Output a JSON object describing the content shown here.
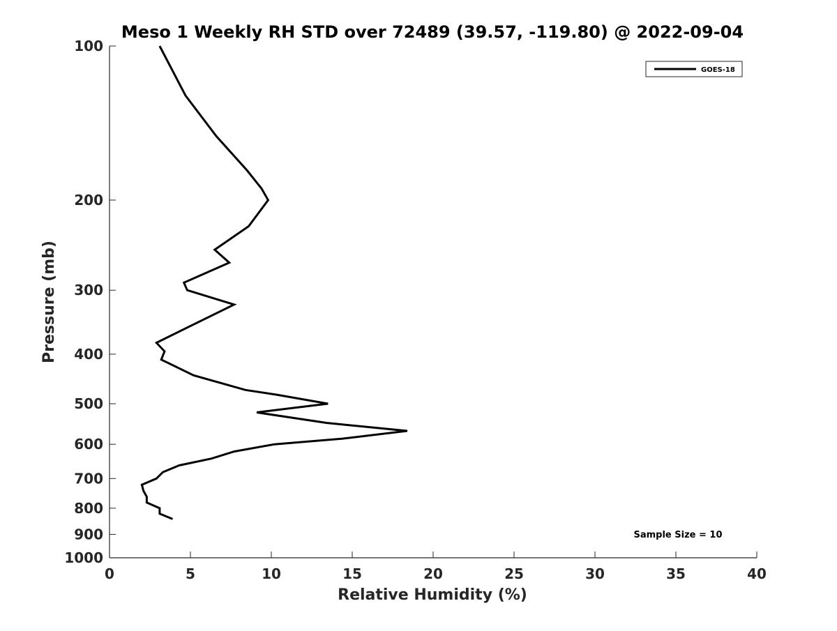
{
  "chart_data": {
    "type": "line",
    "title": "Meso 1 Weekly RH STD over 72489 (39.57, -119.80) @ 2022-09-04",
    "xlabel": "Relative Humidity (%)",
    "ylabel": "Pressure (mb)",
    "xlim": [
      0,
      40
    ],
    "ylim": [
      100,
      1000
    ],
    "y_scale": "log",
    "y_reversed": true,
    "xticks": [
      0,
      5,
      10,
      15,
      20,
      25,
      30,
      35,
      40
    ],
    "yticks": [
      100,
      200,
      300,
      400,
      500,
      600,
      700,
      800,
      900,
      1000
    ],
    "grid": false,
    "legend_position": "top-right",
    "annotation": "Sample Size = 10",
    "series": [
      {
        "name": "GOES-18",
        "color": "#000000",
        "x": [
          3.1,
          4.7,
          6.6,
          8.5,
          9.4,
          9.8,
          8.6,
          6.5,
          7.4,
          4.6,
          4.8,
          7.7,
          5.2,
          2.9,
          3.4,
          3.2,
          5.2,
          8.4,
          10.3,
          13.5,
          9.1,
          13.4,
          18.4,
          14.4,
          10.2,
          7.7,
          6.3,
          4.3,
          3.3,
          2.9,
          2.0,
          2.1,
          2.3,
          2.3,
          3.1,
          3.1,
          3.9
        ],
        "y": [
          100,
          125,
          150,
          175,
          190,
          200,
          225,
          250,
          265,
          290,
          300,
          320,
          350,
          380,
          395,
          410,
          440,
          470,
          480,
          500,
          520,
          545,
          565,
          585,
          600,
          620,
          640,
          660,
          680,
          700,
          720,
          740,
          760,
          780,
          800,
          820,
          840
        ]
      }
    ]
  }
}
